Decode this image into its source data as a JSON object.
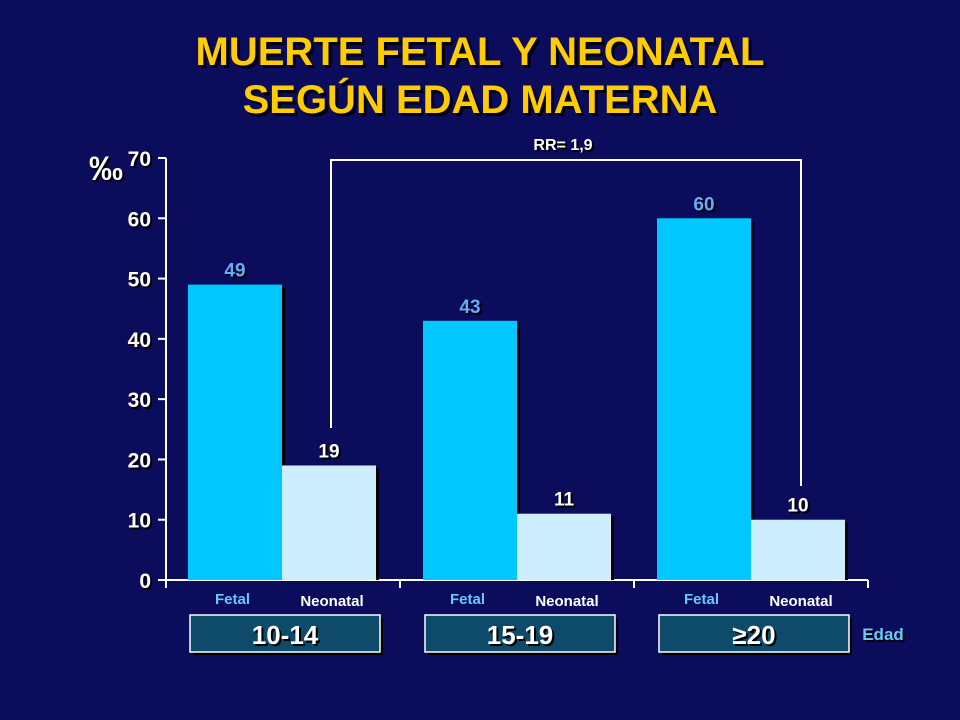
{
  "title_line1": "MUERTE FETAL Y NEONATAL",
  "title_line2": "SEGÚN EDAD MATERNA",
  "chart_data": {
    "type": "bar",
    "categories": [
      "10-14",
      "15-19",
      "≥20"
    ],
    "series": [
      {
        "name": "Fetal",
        "values": [
          49,
          43,
          60
        ]
      },
      {
        "name": "Neonatal",
        "values": [
          19,
          11,
          10
        ]
      }
    ],
    "ylabel": "‰",
    "xlabel": "Edad",
    "ylim": [
      0,
      70
    ],
    "yticks": [
      0,
      10,
      20,
      30,
      40,
      50,
      60,
      70
    ],
    "annotation": "RR= 1,9",
    "colors": {
      "fetal": "#00c8ff",
      "neonatal": "#cceeff",
      "fetal_label": "#66c8ff",
      "neonatal_label": "#ffffff",
      "value_label_fetal": "#66aaff",
      "value_label_neonatal": "#ffffff",
      "category_box": "#0e4a6a"
    }
  }
}
